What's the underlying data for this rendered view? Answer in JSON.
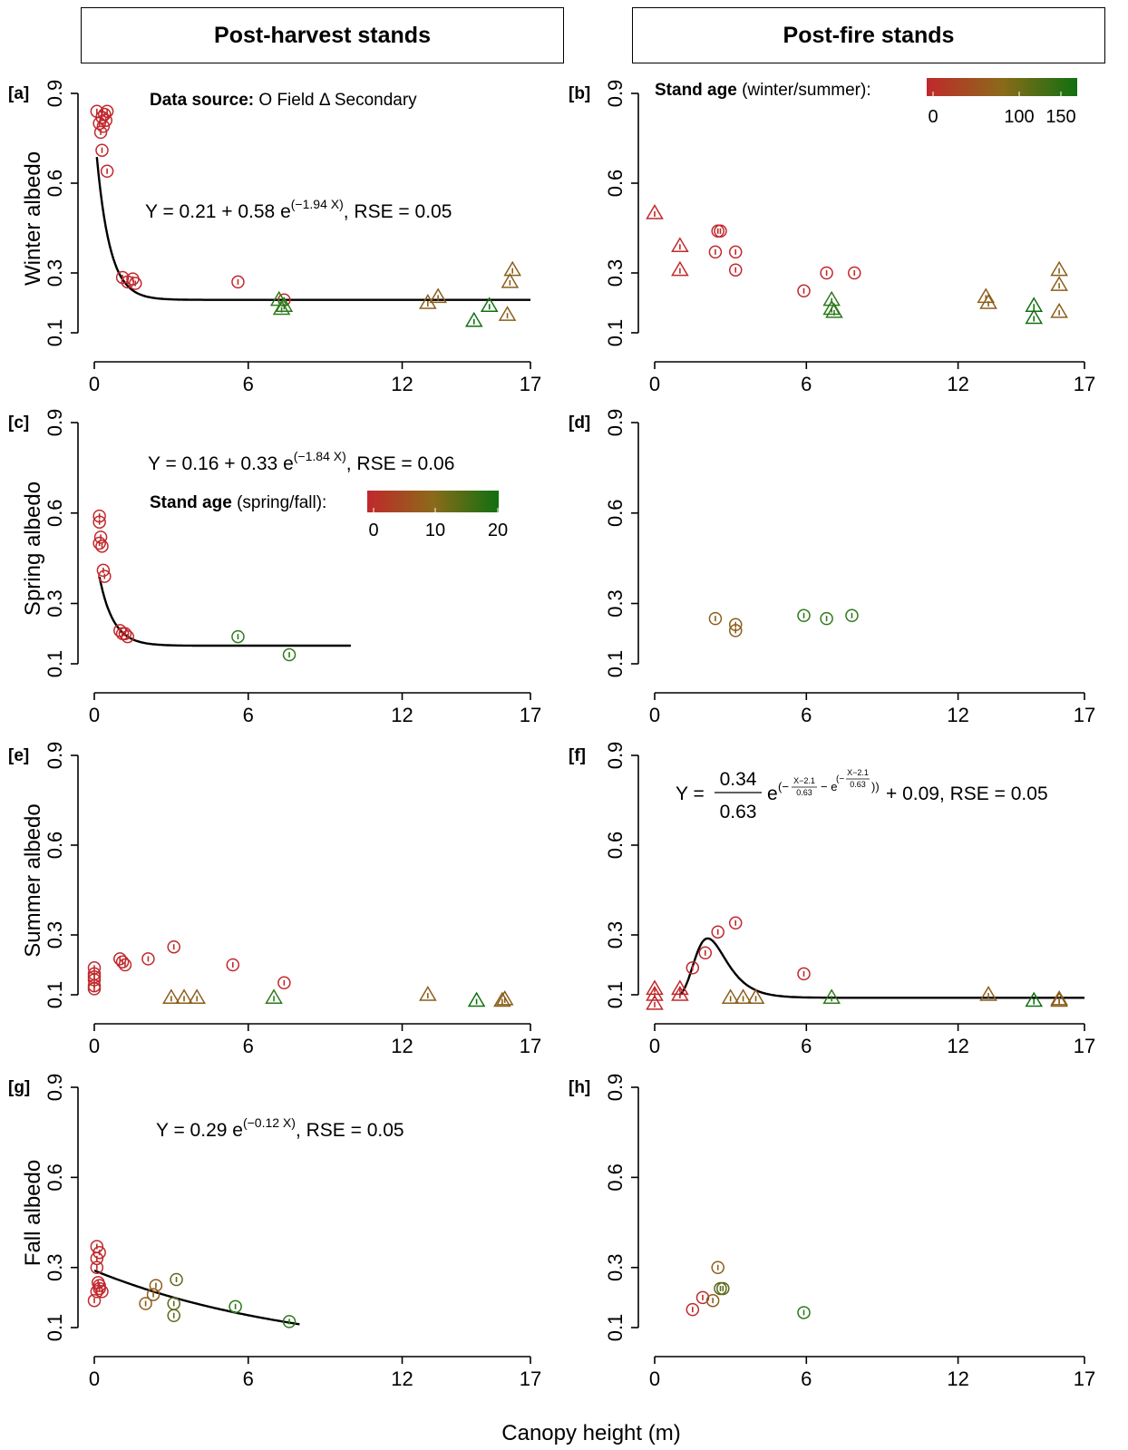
{
  "headers": {
    "left": "Post-harvest stands",
    "right": "Post-fire stands"
  },
  "xlabel": "Canopy height (m)",
  "axes": {
    "x_ticks": [
      0,
      6,
      12,
      17
    ],
    "y_ticks": [
      0.1,
      0.3,
      0.6,
      0.9
    ],
    "xlim": [
      0,
      17
    ],
    "ylim": [
      0.1,
      0.9
    ],
    "grid": false
  },
  "legends": {
    "data_source": {
      "bold": "Data source:",
      "text": "O Field Δ Secondary"
    },
    "age_winter_summer": {
      "bold": "Stand age",
      "text": " (winter/summer):",
      "ticks": [
        "0",
        "100",
        "150"
      ]
    },
    "age_spring_fall": {
      "bold": "Stand age",
      "text": " (spring/fall):",
      "ticks": [
        "0",
        "10",
        "20"
      ]
    }
  },
  "colors": {
    "young": "#c0282c",
    "mid": "#8b5e1a",
    "old": "#107010",
    "curve": "#000000"
  },
  "chart_data": [
    {
      "panel": "[a]",
      "type": "scatter",
      "ylabel": "Winter albedo",
      "season": "winter",
      "stand": "post-harvest",
      "equation": "Y = 0.21 + 0.58 e^(−1.94 X), RSE = 0.05",
      "fit": {
        "type": "exp",
        "a": 0.21,
        "b": 0.58,
        "k": -1.94,
        "xrange": [
          0.1,
          17
        ]
      },
      "points": [
        {
          "x": 0.1,
          "y": 0.84,
          "m": "circle",
          "c": "#c0282c"
        },
        {
          "x": 0.2,
          "y": 0.8,
          "m": "circle",
          "c": "#c0282c"
        },
        {
          "x": 0.25,
          "y": 0.77,
          "m": "circle",
          "c": "#c0282c"
        },
        {
          "x": 0.3,
          "y": 0.82,
          "m": "circle",
          "c": "#c0282c"
        },
        {
          "x": 0.35,
          "y": 0.79,
          "m": "circle",
          "c": "#c0282c"
        },
        {
          "x": 0.4,
          "y": 0.83,
          "m": "circle",
          "c": "#c0282c"
        },
        {
          "x": 0.45,
          "y": 0.81,
          "m": "circle",
          "c": "#c0282c"
        },
        {
          "x": 0.5,
          "y": 0.84,
          "m": "circle",
          "c": "#c0282c"
        },
        {
          "x": 0.3,
          "y": 0.71,
          "m": "circle",
          "c": "#c0282c"
        },
        {
          "x": 0.5,
          "y": 0.64,
          "m": "circle",
          "c": "#c0282c"
        },
        {
          "x": 1.1,
          "y": 0.285,
          "m": "circle",
          "c": "#c0282c"
        },
        {
          "x": 1.3,
          "y": 0.27,
          "m": "circle",
          "c": "#c0282c"
        },
        {
          "x": 1.5,
          "y": 0.28,
          "m": "circle",
          "c": "#c0282c"
        },
        {
          "x": 1.6,
          "y": 0.265,
          "m": "circle",
          "c": "#c0282c"
        },
        {
          "x": 5.6,
          "y": 0.27,
          "m": "circle",
          "c": "#c0282c"
        },
        {
          "x": 7.4,
          "y": 0.21,
          "m": "circle",
          "c": "#c0282c"
        },
        {
          "x": 7.2,
          "y": 0.21,
          "m": "triangle",
          "c": "#2d7a1a"
        },
        {
          "x": 7.3,
          "y": 0.18,
          "m": "triangle",
          "c": "#2d7a1a"
        },
        {
          "x": 7.4,
          "y": 0.19,
          "m": "triangle",
          "c": "#2d7a1a"
        },
        {
          "x": 13.0,
          "y": 0.2,
          "m": "triangle",
          "c": "#8b5e1a"
        },
        {
          "x": 13.4,
          "y": 0.22,
          "m": "triangle",
          "c": "#8b5e1a"
        },
        {
          "x": 14.8,
          "y": 0.14,
          "m": "triangle",
          "c": "#107010"
        },
        {
          "x": 15.4,
          "y": 0.19,
          "m": "triangle",
          "c": "#107010"
        },
        {
          "x": 16.1,
          "y": 0.16,
          "m": "triangle",
          "c": "#8b5e1a"
        },
        {
          "x": 16.2,
          "y": 0.27,
          "m": "triangle",
          "c": "#8b5e1a"
        },
        {
          "x": 16.3,
          "y": 0.31,
          "m": "triangle",
          "c": "#8b5e1a"
        }
      ]
    },
    {
      "panel": "[b]",
      "type": "scatter",
      "ylabel": "",
      "season": "winter",
      "stand": "post-fire",
      "equation": "",
      "points": [
        {
          "x": 0.0,
          "y": 0.5,
          "m": "triangle",
          "c": "#c0282c"
        },
        {
          "x": 1.0,
          "y": 0.39,
          "m": "triangle",
          "c": "#c0282c"
        },
        {
          "x": 1.0,
          "y": 0.31,
          "m": "triangle",
          "c": "#c0282c"
        },
        {
          "x": 2.5,
          "y": 0.44,
          "m": "circle",
          "c": "#c0282c"
        },
        {
          "x": 2.6,
          "y": 0.44,
          "m": "circle",
          "c": "#c0282c"
        },
        {
          "x": 2.4,
          "y": 0.37,
          "m": "circle",
          "c": "#c0282c"
        },
        {
          "x": 3.2,
          "y": 0.37,
          "m": "circle",
          "c": "#c0282c"
        },
        {
          "x": 3.2,
          "y": 0.31,
          "m": "circle",
          "c": "#c0282c"
        },
        {
          "x": 5.9,
          "y": 0.24,
          "m": "circle",
          "c": "#c0282c"
        },
        {
          "x": 6.8,
          "y": 0.3,
          "m": "circle",
          "c": "#c0282c"
        },
        {
          "x": 7.9,
          "y": 0.3,
          "m": "circle",
          "c": "#c0282c"
        },
        {
          "x": 7.0,
          "y": 0.21,
          "m": "triangle",
          "c": "#2d7a1a"
        },
        {
          "x": 7.0,
          "y": 0.18,
          "m": "triangle",
          "c": "#2d7a1a"
        },
        {
          "x": 7.1,
          "y": 0.17,
          "m": "triangle",
          "c": "#2d7a1a"
        },
        {
          "x": 13.1,
          "y": 0.22,
          "m": "triangle",
          "c": "#8b5e1a"
        },
        {
          "x": 13.2,
          "y": 0.2,
          "m": "triangle",
          "c": "#8b5e1a"
        },
        {
          "x": 15.0,
          "y": 0.19,
          "m": "triangle",
          "c": "#107010"
        },
        {
          "x": 15.0,
          "y": 0.15,
          "m": "triangle",
          "c": "#107010"
        },
        {
          "x": 16.0,
          "y": 0.31,
          "m": "triangle",
          "c": "#8b5e1a"
        },
        {
          "x": 16.0,
          "y": 0.26,
          "m": "triangle",
          "c": "#8b5e1a"
        },
        {
          "x": 16.0,
          "y": 0.17,
          "m": "triangle",
          "c": "#8b5e1a"
        }
      ]
    },
    {
      "panel": "[c]",
      "type": "scatter",
      "ylabel": "Spring albedo",
      "season": "spring",
      "stand": "post-harvest",
      "equation": "Y = 0.16 + 0.33 e^(−1.84 X), RSE = 0.06",
      "fit": {
        "type": "exp",
        "a": 0.16,
        "b": 0.33,
        "k": -1.84,
        "xrange": [
          0.2,
          10
        ]
      },
      "points": [
        {
          "x": 0.2,
          "y": 0.59,
          "m": "circle",
          "c": "#c0282c"
        },
        {
          "x": 0.2,
          "y": 0.57,
          "m": "circle",
          "c": "#c0282c"
        },
        {
          "x": 0.25,
          "y": 0.52,
          "m": "circle",
          "c": "#c0282c"
        },
        {
          "x": 0.2,
          "y": 0.5,
          "m": "circle",
          "c": "#c0282c"
        },
        {
          "x": 0.3,
          "y": 0.49,
          "m": "circle",
          "c": "#c0282c"
        },
        {
          "x": 0.35,
          "y": 0.41,
          "m": "circle",
          "c": "#c0282c"
        },
        {
          "x": 0.4,
          "y": 0.39,
          "m": "circle",
          "c": "#c0282c"
        },
        {
          "x": 1.0,
          "y": 0.21,
          "m": "circle",
          "c": "#c0282c"
        },
        {
          "x": 1.1,
          "y": 0.2,
          "m": "circle",
          "c": "#c0282c"
        },
        {
          "x": 1.2,
          "y": 0.2,
          "m": "circle",
          "c": "#c0282c"
        },
        {
          "x": 1.3,
          "y": 0.19,
          "m": "circle",
          "c": "#c0282c"
        },
        {
          "x": 5.6,
          "y": 0.19,
          "m": "circle",
          "c": "#2d7a1a"
        },
        {
          "x": 7.6,
          "y": 0.13,
          "m": "circle",
          "c": "#2d7a1a"
        }
      ]
    },
    {
      "panel": "[d]",
      "type": "scatter",
      "ylabel": "",
      "season": "spring",
      "stand": "post-fire",
      "equation": "",
      "points": [
        {
          "x": 2.4,
          "y": 0.25,
          "m": "circle",
          "c": "#8b5e1a"
        },
        {
          "x": 3.2,
          "y": 0.23,
          "m": "circle",
          "c": "#8b5e1a"
        },
        {
          "x": 3.2,
          "y": 0.21,
          "m": "circle",
          "c": "#8b5e1a"
        },
        {
          "x": 5.9,
          "y": 0.26,
          "m": "circle",
          "c": "#2d7a1a"
        },
        {
          "x": 6.8,
          "y": 0.25,
          "m": "circle",
          "c": "#2d7a1a"
        },
        {
          "x": 7.8,
          "y": 0.26,
          "m": "circle",
          "c": "#2d7a1a"
        }
      ]
    },
    {
      "panel": "[e]",
      "type": "scatter",
      "ylabel": "Summer albedo",
      "season": "summer",
      "stand": "post-harvest",
      "equation": "",
      "points": [
        {
          "x": 0.0,
          "y": 0.19,
          "m": "circle",
          "c": "#c0282c"
        },
        {
          "x": 0.0,
          "y": 0.17,
          "m": "circle",
          "c": "#c0282c"
        },
        {
          "x": 0.0,
          "y": 0.16,
          "m": "circle",
          "c": "#c0282c"
        },
        {
          "x": 0.0,
          "y": 0.15,
          "m": "circle",
          "c": "#c0282c"
        },
        {
          "x": 0.0,
          "y": 0.13,
          "m": "circle",
          "c": "#c0282c"
        },
        {
          "x": 0.0,
          "y": 0.12,
          "m": "circle",
          "c": "#c0282c"
        },
        {
          "x": 1.0,
          "y": 0.22,
          "m": "circle",
          "c": "#c0282c"
        },
        {
          "x": 1.1,
          "y": 0.21,
          "m": "circle",
          "c": "#c0282c"
        },
        {
          "x": 1.2,
          "y": 0.2,
          "m": "circle",
          "c": "#c0282c"
        },
        {
          "x": 2.1,
          "y": 0.22,
          "m": "circle",
          "c": "#c0282c"
        },
        {
          "x": 3.1,
          "y": 0.26,
          "m": "circle",
          "c": "#c0282c"
        },
        {
          "x": 5.4,
          "y": 0.2,
          "m": "circle",
          "c": "#c0282c"
        },
        {
          "x": 7.4,
          "y": 0.14,
          "m": "circle",
          "c": "#c0282c"
        },
        {
          "x": 3.0,
          "y": 0.09,
          "m": "triangle",
          "c": "#8b5e1a"
        },
        {
          "x": 3.5,
          "y": 0.09,
          "m": "triangle",
          "c": "#8b5e1a"
        },
        {
          "x": 4.0,
          "y": 0.09,
          "m": "triangle",
          "c": "#8b5e1a"
        },
        {
          "x": 7.0,
          "y": 0.09,
          "m": "triangle",
          "c": "#2d7a1a"
        },
        {
          "x": 13.0,
          "y": 0.1,
          "m": "triangle",
          "c": "#8b5e1a"
        },
        {
          "x": 14.9,
          "y": 0.08,
          "m": "triangle",
          "c": "#107010"
        },
        {
          "x": 15.9,
          "y": 0.08,
          "m": "triangle",
          "c": "#8b5e1a"
        },
        {
          "x": 16.0,
          "y": 0.085,
          "m": "triangle",
          "c": "#8b5e1a"
        }
      ]
    },
    {
      "panel": "[f]",
      "type": "scatter",
      "ylabel": "",
      "season": "summer",
      "stand": "post-fire",
      "equation": {
        "lhs": "Y =",
        "num": "0.34",
        "den": "0.63",
        "base": "e",
        "exp_a": "X−2.1",
        "exp_b": "0.63",
        "tail": "+ 0.09, RSE = 0.05"
      },
      "fit": {
        "type": "gumbel",
        "a": 0.34,
        "s": 0.63,
        "m": 2.1,
        "c": 0.09,
        "xrange": [
          1.0,
          17
        ]
      },
      "points": [
        {
          "x": 0.0,
          "y": 0.12,
          "m": "triangle",
          "c": "#c0282c"
        },
        {
          "x": 0.0,
          "y": 0.1,
          "m": "triangle",
          "c": "#c0282c"
        },
        {
          "x": 0.0,
          "y": 0.07,
          "m": "triangle",
          "c": "#c0282c"
        },
        {
          "x": 1.0,
          "y": 0.12,
          "m": "triangle",
          "c": "#c0282c"
        },
        {
          "x": 1.0,
          "y": 0.1,
          "m": "triangle",
          "c": "#c0282c"
        },
        {
          "x": 1.5,
          "y": 0.19,
          "m": "circle",
          "c": "#c0282c"
        },
        {
          "x": 2.0,
          "y": 0.24,
          "m": "circle",
          "c": "#c0282c"
        },
        {
          "x": 2.5,
          "y": 0.31,
          "m": "circle",
          "c": "#c0282c"
        },
        {
          "x": 3.2,
          "y": 0.34,
          "m": "circle",
          "c": "#c0282c"
        },
        {
          "x": 5.9,
          "y": 0.17,
          "m": "circle",
          "c": "#c0282c"
        },
        {
          "x": 3.0,
          "y": 0.09,
          "m": "triangle",
          "c": "#8b5e1a"
        },
        {
          "x": 3.5,
          "y": 0.09,
          "m": "triangle",
          "c": "#8b5e1a"
        },
        {
          "x": 4.0,
          "y": 0.09,
          "m": "triangle",
          "c": "#8b5e1a"
        },
        {
          "x": 7.0,
          "y": 0.09,
          "m": "triangle",
          "c": "#2d7a1a"
        },
        {
          "x": 13.2,
          "y": 0.1,
          "m": "triangle",
          "c": "#8b5e1a"
        },
        {
          "x": 15.0,
          "y": 0.08,
          "m": "triangle",
          "c": "#107010"
        },
        {
          "x": 16.0,
          "y": 0.08,
          "m": "triangle",
          "c": "#8b5e1a"
        },
        {
          "x": 16.0,
          "y": 0.085,
          "m": "triangle",
          "c": "#8b5e1a"
        }
      ]
    },
    {
      "panel": "[g]",
      "type": "scatter",
      "ylabel": "Fall albedo",
      "season": "fall",
      "stand": "post-harvest",
      "equation": "Y = 0.29 e^(−0.12 X), RSE = 0.05",
      "fit": {
        "type": "exp",
        "a": 0.0,
        "b": 0.29,
        "k": -0.12,
        "xrange": [
          0.0,
          8
        ]
      },
      "points": [
        {
          "x": 0.1,
          "y": 0.37,
          "m": "circle",
          "c": "#c0282c"
        },
        {
          "x": 0.2,
          "y": 0.35,
          "m": "circle",
          "c": "#c0282c"
        },
        {
          "x": 0.1,
          "y": 0.33,
          "m": "circle",
          "c": "#c0282c"
        },
        {
          "x": 0.1,
          "y": 0.3,
          "m": "circle",
          "c": "#c0282c"
        },
        {
          "x": 0.15,
          "y": 0.25,
          "m": "circle",
          "c": "#c0282c"
        },
        {
          "x": 0.2,
          "y": 0.24,
          "m": "circle",
          "c": "#c0282c"
        },
        {
          "x": 0.1,
          "y": 0.22,
          "m": "circle",
          "c": "#c0282c"
        },
        {
          "x": 0.2,
          "y": 0.23,
          "m": "circle",
          "c": "#c0282c"
        },
        {
          "x": 0.3,
          "y": 0.22,
          "m": "circle",
          "c": "#c0282c"
        },
        {
          "x": 0.0,
          "y": 0.19,
          "m": "circle",
          "c": "#c0282c"
        },
        {
          "x": 2.0,
          "y": 0.18,
          "m": "circle",
          "c": "#8b5e1a"
        },
        {
          "x": 2.3,
          "y": 0.21,
          "m": "circle",
          "c": "#8b5e1a"
        },
        {
          "x": 2.4,
          "y": 0.24,
          "m": "circle",
          "c": "#8b5e1a"
        },
        {
          "x": 3.2,
          "y": 0.26,
          "m": "circle",
          "c": "#5a6a1a"
        },
        {
          "x": 3.1,
          "y": 0.18,
          "m": "circle",
          "c": "#5a6a1a"
        },
        {
          "x": 3.1,
          "y": 0.14,
          "m": "circle",
          "c": "#5a6a1a"
        },
        {
          "x": 5.5,
          "y": 0.17,
          "m": "circle",
          "c": "#2d7a1a"
        },
        {
          "x": 7.6,
          "y": 0.12,
          "m": "circle",
          "c": "#2d7a1a"
        }
      ]
    },
    {
      "panel": "[h]",
      "type": "scatter",
      "ylabel": "",
      "season": "fall",
      "stand": "post-fire",
      "equation": "",
      "points": [
        {
          "x": 1.5,
          "y": 0.16,
          "m": "circle",
          "c": "#c0282c"
        },
        {
          "x": 1.9,
          "y": 0.2,
          "m": "circle",
          "c": "#c0282c"
        },
        {
          "x": 2.3,
          "y": 0.19,
          "m": "circle",
          "c": "#8b5e1a"
        },
        {
          "x": 2.5,
          "y": 0.3,
          "m": "circle",
          "c": "#8b5e1a"
        },
        {
          "x": 2.6,
          "y": 0.23,
          "m": "circle",
          "c": "#5a6a1a"
        },
        {
          "x": 2.7,
          "y": 0.23,
          "m": "circle",
          "c": "#5a6a1a"
        },
        {
          "x": 5.9,
          "y": 0.15,
          "m": "circle",
          "c": "#2d7a1a"
        }
      ]
    }
  ]
}
